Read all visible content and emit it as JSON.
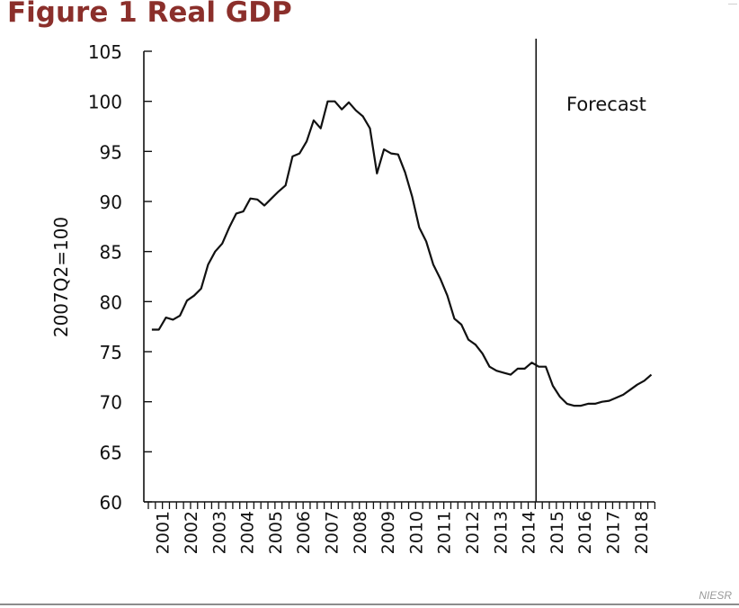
{
  "title": "Figure 1 Real GDP",
  "source": "NIESR",
  "colors": {
    "title": "#8b2f2b",
    "line": "#111111",
    "axis": "#111111",
    "source": "#9a9a9a"
  },
  "chart_data": {
    "type": "line",
    "ylabel": "2007Q2=100",
    "xlabel": "",
    "ylim": [
      60,
      105
    ],
    "yticks": [
      105,
      100,
      95,
      90,
      85,
      80,
      75,
      70,
      65,
      60
    ],
    "xticklabels": [
      "2001",
      "2002",
      "2003",
      "2004",
      "2005",
      "2006",
      "2007",
      "2008",
      "2009",
      "2010",
      "2011",
      "2012",
      "2013",
      "2014",
      "2015",
      "2016",
      "2017",
      "2018"
    ],
    "grid": false,
    "legend": "none",
    "annotation": "Forecast",
    "forecast_start": "2014Q4",
    "series": [
      {
        "x": [
          "2001Q1",
          "2001Q2",
          "2001Q3",
          "2001Q4",
          "2002Q1",
          "2002Q2",
          "2002Q3",
          "2002Q4",
          "2003Q1",
          "2003Q2",
          "2003Q3",
          "2003Q4",
          "2004Q1",
          "2004Q2",
          "2004Q3",
          "2004Q4",
          "2005Q1",
          "2005Q2",
          "2005Q3",
          "2005Q4",
          "2006Q1",
          "2006Q2",
          "2006Q3",
          "2006Q4",
          "2007Q1",
          "2007Q2",
          "2007Q3",
          "2007Q4",
          "2008Q1",
          "2008Q2",
          "2008Q3",
          "2008Q4",
          "2009Q1",
          "2009Q2",
          "2009Q3",
          "2009Q4",
          "2010Q1",
          "2010Q2",
          "2010Q3",
          "2010Q4",
          "2011Q1",
          "2011Q2",
          "2011Q3",
          "2011Q4",
          "2012Q1",
          "2012Q2",
          "2012Q3",
          "2012Q4",
          "2013Q1",
          "2013Q2",
          "2013Q3",
          "2013Q4",
          "2014Q1",
          "2014Q2",
          "2014Q3",
          "2014Q4",
          "2015Q1",
          "2015Q2",
          "2015Q3",
          "2015Q4",
          "2016Q1",
          "2016Q2",
          "2016Q3",
          "2016Q4",
          "2017Q1",
          "2017Q2",
          "2017Q3",
          "2017Q4",
          "2018Q1",
          "2018Q2",
          "2018Q3",
          "2018Q4"
        ],
        "values": [
          77.2,
          77.2,
          78.4,
          78.2,
          78.6,
          80.1,
          80.6,
          81.3,
          83.7,
          85.0,
          85.8,
          87.4,
          88.8,
          89.0,
          90.3,
          90.2,
          89.6,
          90.3,
          91.0,
          91.6,
          94.5,
          94.8,
          96.0,
          98.1,
          97.3,
          100.0,
          100.0,
          99.2,
          99.9,
          99.1,
          98.5,
          97.3,
          92.8,
          95.2,
          94.8,
          94.7,
          92.9,
          90.5,
          87.4,
          86.0,
          83.7,
          82.3,
          80.6,
          78.3,
          77.7,
          76.2,
          75.7,
          74.8,
          73.5,
          73.1,
          72.9,
          72.7,
          73.3,
          73.3,
          73.9,
          73.5,
          73.5,
          71.6,
          70.5,
          69.8,
          69.6,
          69.6,
          69.8,
          69.8,
          70.0,
          70.1,
          70.4,
          70.7,
          71.2,
          71.7,
          72.1,
          72.7
        ]
      }
    ]
  }
}
